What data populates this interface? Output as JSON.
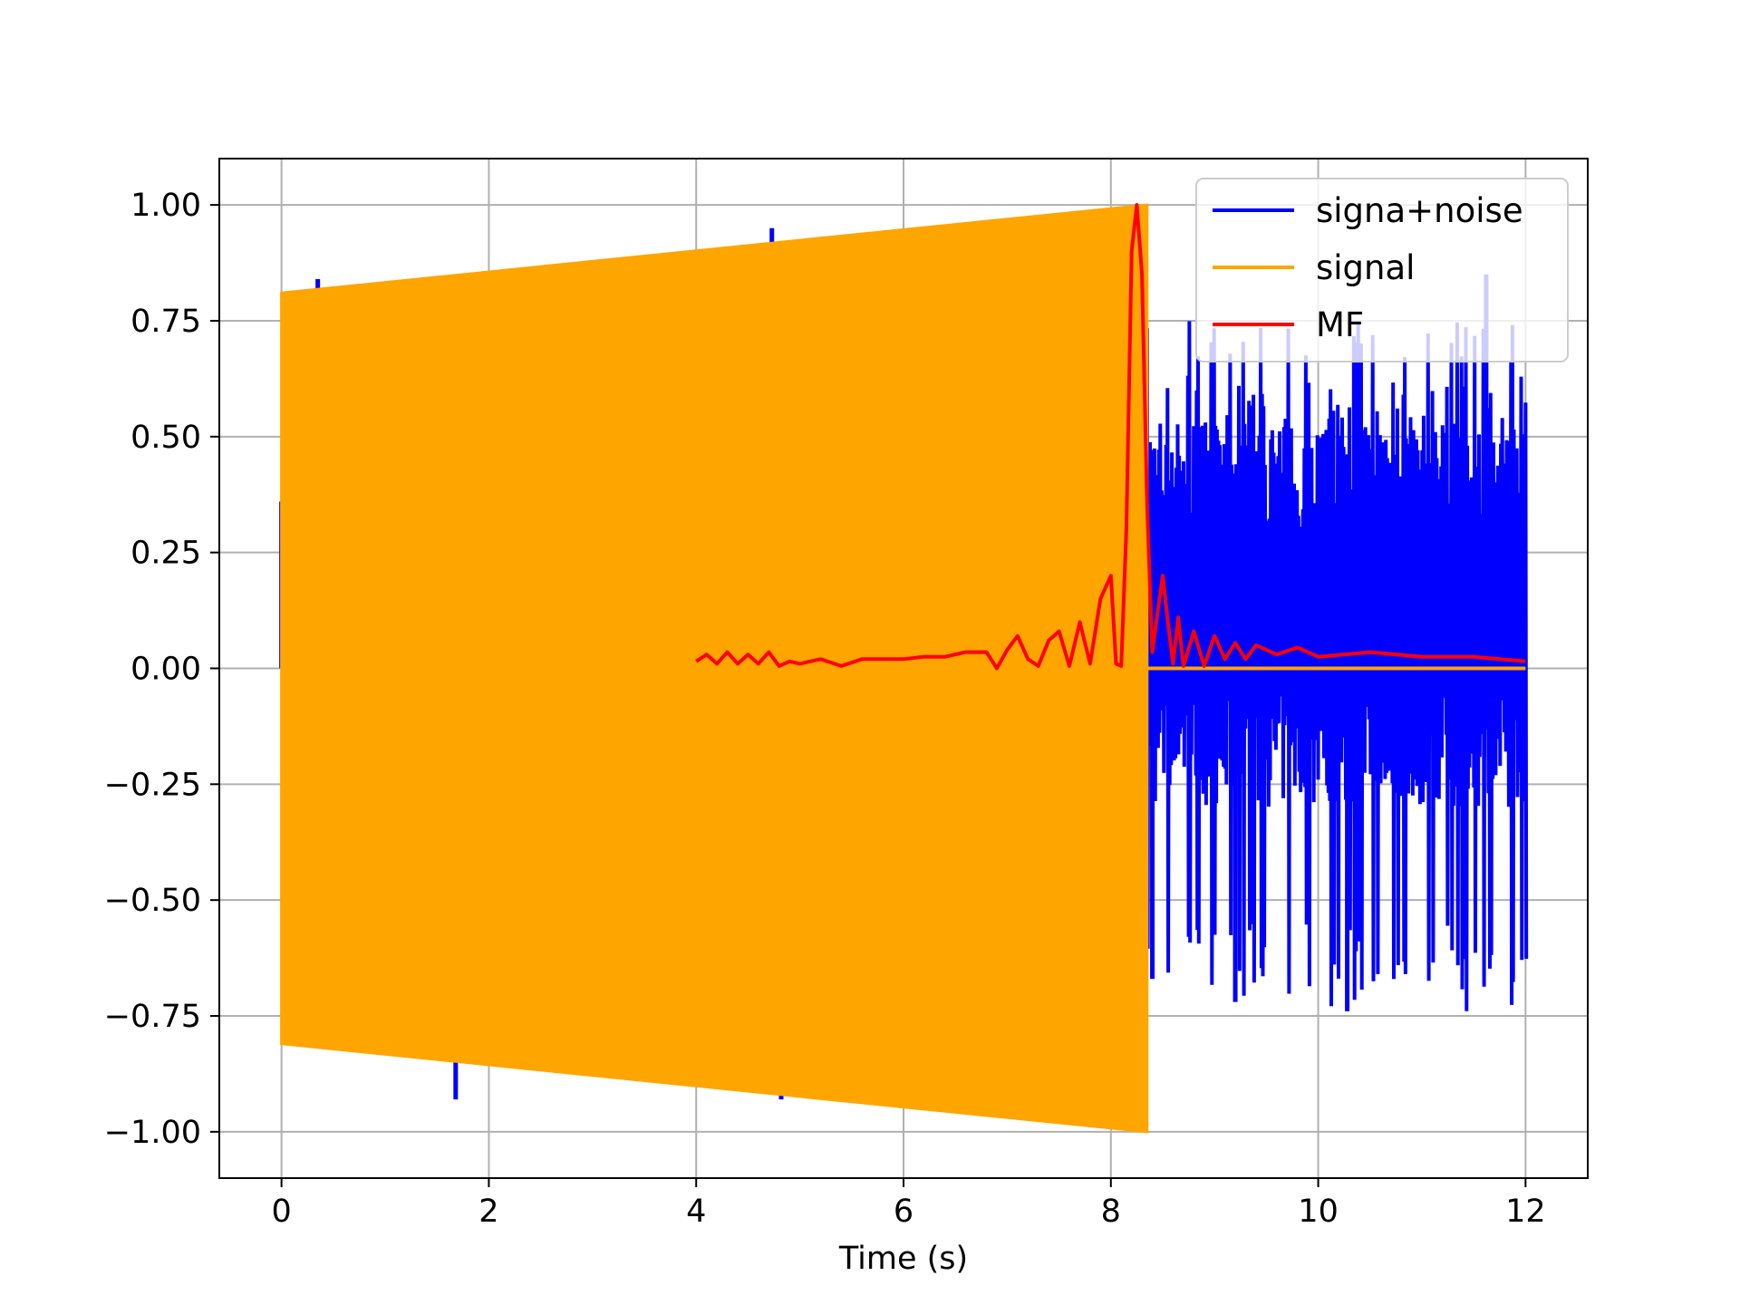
{
  "chart_data": {
    "type": "line",
    "title": "",
    "xlabel": "Time (s)",
    "ylabel": "",
    "xlim": [
      -0.6,
      12.6
    ],
    "ylim": [
      -1.1,
      1.1
    ],
    "grid": true,
    "legend_position": "top-right",
    "xticks": [
      0,
      2,
      4,
      6,
      8,
      10,
      12
    ],
    "yticks": [
      1.0,
      0.75,
      0.5,
      0.25,
      0.0,
      -0.25,
      -0.5,
      -0.75,
      -1.0
    ],
    "xtick_labels": [
      "0",
      "2",
      "4",
      "6",
      "8",
      "10",
      "12"
    ],
    "ytick_labels": [
      "1.00",
      "0.75",
      "0.50",
      "0.25",
      "0.00",
      "−0.25",
      "−0.50",
      "−0.75",
      "−1.00"
    ],
    "series": [
      {
        "name": "signa+noise",
        "color": "#0000ff",
        "description_range": {
          "x_start": 0,
          "x_end": 12
        },
        "spikes": [
          [
            0.0,
            0.36
          ],
          [
            0.35,
            0.84
          ],
          [
            1.68,
            -0.93
          ],
          [
            4.73,
            0.95
          ],
          [
            4.82,
            -0.93
          ],
          [
            8.3,
            1.0
          ],
          [
            11.62,
            0.85
          ],
          [
            9.2,
            -0.72
          ],
          [
            10.28,
            -0.74
          ],
          [
            8.4,
            -0.67
          ]
        ],
        "noise_envelope": {
          "x_start": 8.35,
          "x_end": 12.0,
          "y_max": 0.75,
          "y_min": -0.74,
          "typical_max": 0.55,
          "typical_min": -0.55
        }
      },
      {
        "name": "signal",
        "color": "#ffa500",
        "envelope": [
          [
            0.0,
            0.81
          ],
          [
            8.35,
            1.0
          ]
        ],
        "envelope_lower": [
          [
            0.0,
            -0.81
          ],
          [
            8.35,
            -1.0
          ]
        ],
        "zero_after": [
          8.35,
          12.0
        ]
      },
      {
        "name": "MF",
        "color": "#ff0000",
        "x": [
          4.0,
          4.1,
          4.2,
          4.3,
          4.4,
          4.5,
          4.6,
          4.7,
          4.8,
          4.9,
          5.0,
          5.2,
          5.4,
          5.6,
          5.8,
          6.0,
          6.2,
          6.4,
          6.6,
          6.8,
          6.9,
          7.0,
          7.1,
          7.2,
          7.3,
          7.4,
          7.5,
          7.6,
          7.7,
          7.8,
          7.9,
          8.0,
          8.05,
          8.1,
          8.15,
          8.2,
          8.25,
          8.3,
          8.35,
          8.4,
          8.45,
          8.5,
          8.55,
          8.6,
          8.65,
          8.7,
          8.8,
          8.9,
          9.0,
          9.1,
          9.2,
          9.3,
          9.4,
          9.6,
          9.8,
          10.0,
          10.5,
          11.0,
          11.5,
          12.0
        ],
        "y": [
          0.015,
          0.03,
          0.01,
          0.035,
          0.01,
          0.03,
          0.01,
          0.035,
          0.005,
          0.015,
          0.01,
          0.02,
          0.005,
          0.02,
          0.02,
          0.02,
          0.025,
          0.025,
          0.035,
          0.035,
          0.0,
          0.04,
          0.07,
          0.02,
          0.005,
          0.06,
          0.08,
          0.005,
          0.1,
          0.01,
          0.15,
          0.2,
          0.01,
          0.005,
          0.3,
          0.9,
          1.0,
          0.85,
          0.35,
          0.035,
          0.12,
          0.2,
          0.1,
          0.01,
          0.11,
          0.005,
          0.08,
          0.005,
          0.07,
          0.02,
          0.055,
          0.02,
          0.05,
          0.03,
          0.045,
          0.025,
          0.035,
          0.025,
          0.025,
          0.015
        ]
      }
    ]
  }
}
